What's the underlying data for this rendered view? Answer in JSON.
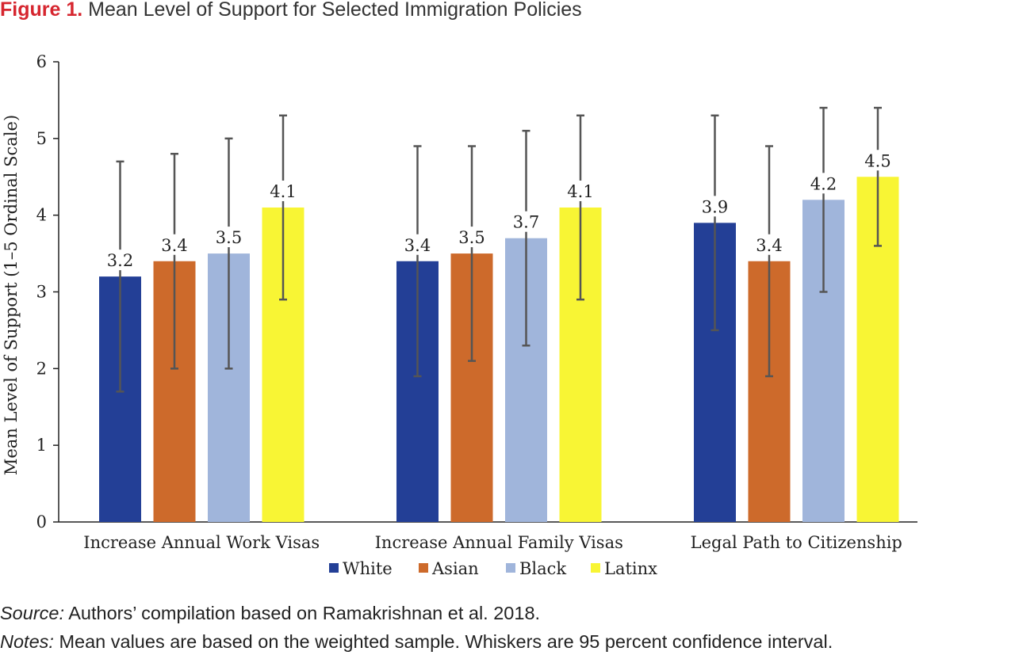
{
  "figure": {
    "label": "Figure 1.",
    "title": "Mean Level of Support for Selected Immigration Policies"
  },
  "chart_data": {
    "type": "bar",
    "title": "Mean Level of Support for Selected Immigration Policies",
    "xlabel": "",
    "ylabel": "Mean Level of Support (1–5 Ordinal Scale)",
    "ylim": [
      0,
      6
    ],
    "yticks": [
      0,
      1,
      2,
      3,
      4,
      5,
      6
    ],
    "categories": [
      "Increase Annual Work Visas",
      "Increase Annual Family Visas",
      "Legal Path to Citizenship"
    ],
    "series": [
      {
        "name": "White",
        "color": "#233f96",
        "values": [
          3.2,
          3.4,
          3.9
        ],
        "ci_low": [
          1.7,
          1.9,
          2.5
        ],
        "ci_high": [
          4.7,
          4.9,
          5.3
        ]
      },
      {
        "name": "Asian",
        "color": "#cd6a2b",
        "values": [
          3.4,
          3.5,
          3.4
        ],
        "ci_low": [
          2.0,
          2.1,
          1.9
        ],
        "ci_high": [
          4.8,
          4.9,
          4.9
        ]
      },
      {
        "name": "Black",
        "color": "#a0b5db",
        "values": [
          3.5,
          3.7,
          4.2
        ],
        "ci_low": [
          2.0,
          2.3,
          3.0
        ],
        "ci_high": [
          5.0,
          5.1,
          5.4
        ]
      },
      {
        "name": "Latinx",
        "color": "#f8f534",
        "values": [
          4.1,
          4.1,
          4.5
        ],
        "ci_low": [
          2.9,
          2.9,
          3.6
        ],
        "ci_high": [
          5.3,
          5.3,
          5.4
        ]
      }
    ],
    "data_labels": true,
    "error_bars": "95 percent confidence interval",
    "grid": false,
    "legend": "bottom"
  },
  "notes": {
    "source_lead": "Source:",
    "source_text": " Authors’ compilation based on Ramakrishnan et al. 2018.",
    "notes_lead": "Notes:",
    "notes_text": " Mean values are based on the weighted sample. Whiskers are 95 percent confidence interval."
  }
}
